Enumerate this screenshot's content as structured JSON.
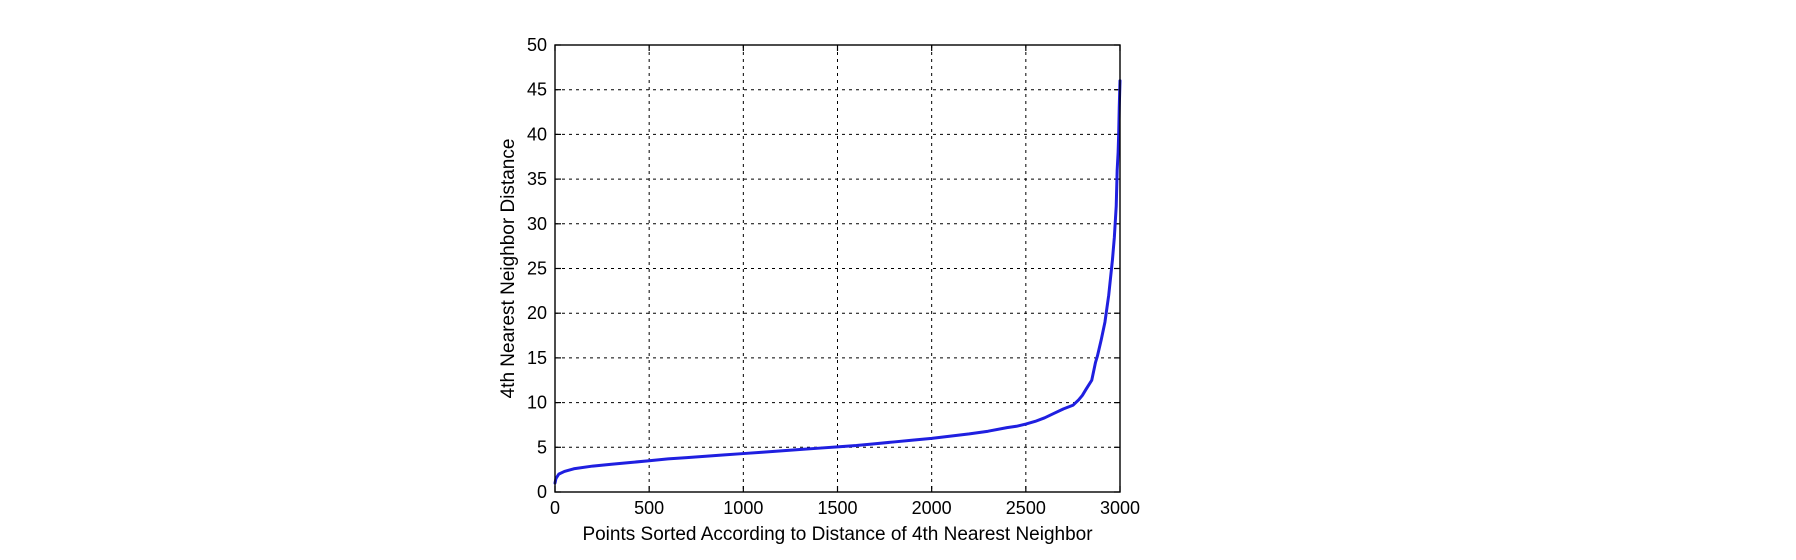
{
  "chart_data": {
    "type": "line",
    "title": "",
    "xlabel": "Points Sorted According to Distance of 4th Nearest Neighbor",
    "ylabel": "4th Nearest Neighbor Distance",
    "xlim": [
      0,
      3000
    ],
    "ylim": [
      0,
      50
    ],
    "x_ticks": [
      0,
      500,
      1000,
      1500,
      2000,
      2500,
      3000
    ],
    "y_ticks": [
      0,
      5,
      10,
      15,
      20,
      25,
      30,
      35,
      40,
      45,
      50
    ],
    "x_tick_labels": [
      "0",
      "500",
      "1000",
      "1500",
      "2000",
      "2500",
      "3000"
    ],
    "y_tick_labels": [
      "0",
      "5",
      "10",
      "15",
      "20",
      "25",
      "30",
      "35",
      "40",
      "45",
      "50"
    ],
    "grid": true,
    "series": [
      {
        "color": "#1f1fe0",
        "x": [
          0,
          5,
          20,
          50,
          100,
          200,
          300,
          400,
          500,
          600,
          700,
          800,
          900,
          1000,
          1100,
          1200,
          1300,
          1400,
          1500,
          1600,
          1700,
          1800,
          1900,
          2000,
          2100,
          2200,
          2300,
          2400,
          2450,
          2500,
          2550,
          2600,
          2650,
          2700,
          2750,
          2780,
          2800,
          2820,
          2850,
          2870,
          2880,
          2900,
          2920,
          2940,
          2950,
          2960,
          2970,
          2980,
          2985,
          2990,
          2993,
          2996,
          2998,
          3000
        ],
        "y": [
          1.0,
          1.5,
          2.0,
          2.3,
          2.6,
          2.9,
          3.1,
          3.3,
          3.5,
          3.7,
          3.85,
          4.0,
          4.15,
          4.3,
          4.45,
          4.6,
          4.75,
          4.9,
          5.05,
          5.2,
          5.4,
          5.6,
          5.8,
          6.0,
          6.25,
          6.5,
          6.8,
          7.2,
          7.35,
          7.6,
          7.9,
          8.3,
          8.8,
          9.3,
          9.7,
          10.3,
          10.8,
          11.5,
          12.5,
          14.5,
          15.2,
          17.0,
          19.0,
          22.0,
          24.0,
          26.0,
          28.5,
          32.0,
          36.0,
          38.0,
          40.0,
          43.0,
          44.5,
          46.0
        ]
      }
    ]
  }
}
